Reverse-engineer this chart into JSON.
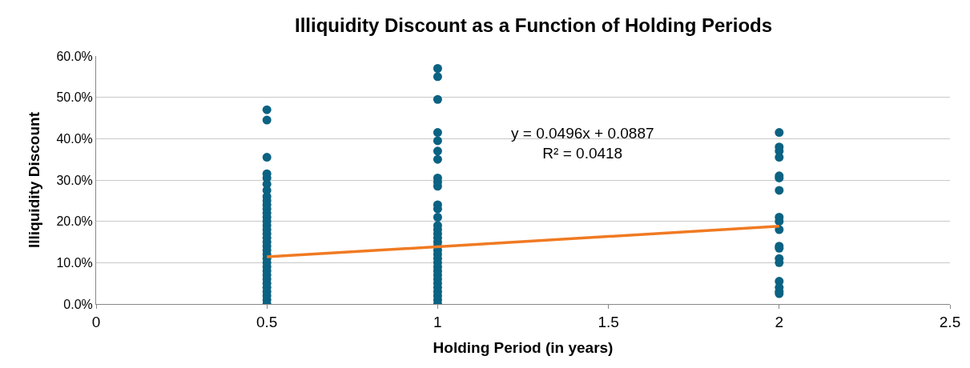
{
  "chart_data": {
    "type": "scatter",
    "title": "Illiquidity Discount as a Function of Holding Periods",
    "xlabel": "Holding Period (in years)",
    "ylabel": "Illiquidity Discount",
    "series": [
      {
        "color": "#0b6282",
        "marker": "circle",
        "x": [
          0.5,
          0.5,
          0.5,
          0.5,
          0.5,
          0.5,
          0.5,
          0.5,
          0.5,
          0.5,
          0.5,
          0.5,
          0.5,
          0.5,
          0.5,
          0.5,
          0.5,
          0.5,
          0.5,
          0.5,
          0.5,
          0.5,
          0.5,
          0.5,
          0.5,
          0.5,
          0.5,
          0.5,
          0.5,
          0.5,
          0.5,
          0.5,
          0.5,
          0.5,
          1,
          1,
          1,
          1,
          1,
          1,
          1,
          1,
          1,
          1,
          1,
          1,
          1,
          1,
          1,
          1,
          1,
          1,
          1,
          1,
          1,
          1,
          1,
          1,
          1,
          1,
          1,
          1,
          1,
          1,
          1,
          1,
          1,
          2,
          2,
          2,
          2,
          2,
          2,
          2,
          2,
          2,
          2,
          2,
          2,
          2,
          2,
          2,
          2,
          2,
          2
        ],
        "values": [
          47,
          44.5,
          35.5,
          31.5,
          30.5,
          29,
          27.5,
          26,
          25,
          24,
          23,
          22,
          21,
          20,
          19,
          18,
          17,
          16,
          15,
          14,
          13,
          12,
          11,
          10,
          9,
          8,
          7,
          6,
          5,
          4,
          3,
          2,
          1,
          0,
          57,
          55,
          49.5,
          41.5,
          39.5,
          37,
          35,
          30.5,
          29.5,
          28.5,
          24,
          23,
          21,
          19,
          18,
          17,
          16,
          15,
          14,
          13,
          12,
          11,
          10,
          9,
          8,
          7,
          6,
          5,
          4,
          3,
          2,
          1,
          0,
          41.5,
          38,
          37,
          35.5,
          31,
          30.5,
          27.5,
          21,
          20,
          18,
          14,
          13.5,
          11,
          10,
          5.5,
          4,
          3,
          2.5
        ]
      },
      {
        "type": "line",
        "color": "#f07a22",
        "marker": "none",
        "x": [
          0.5,
          2
        ],
        "values": [
          11.4,
          18.8
        ]
      }
    ],
    "annotations": [
      "y = 0.0496x + 0.0887\nR² = 0.0418"
    ],
    "xlim": [
      0,
      2.5
    ],
    "xticks": [
      0,
      0.5,
      1,
      1.5,
      2,
      2.5
    ],
    "ylim": [
      0,
      60
    ],
    "yticks": [
      {
        "value": 0,
        "label": "0.0%"
      },
      {
        "value": 10,
        "label": "10.0%"
      },
      {
        "value": 20,
        "label": "20.0%"
      },
      {
        "value": 30,
        "label": "30.0%"
      },
      {
        "value": 40,
        "label": "40.0%"
      },
      {
        "value": 50,
        "label": "50.0%"
      },
      {
        "value": 60,
        "label": "60.0%"
      }
    ],
    "grid": "y"
  }
}
